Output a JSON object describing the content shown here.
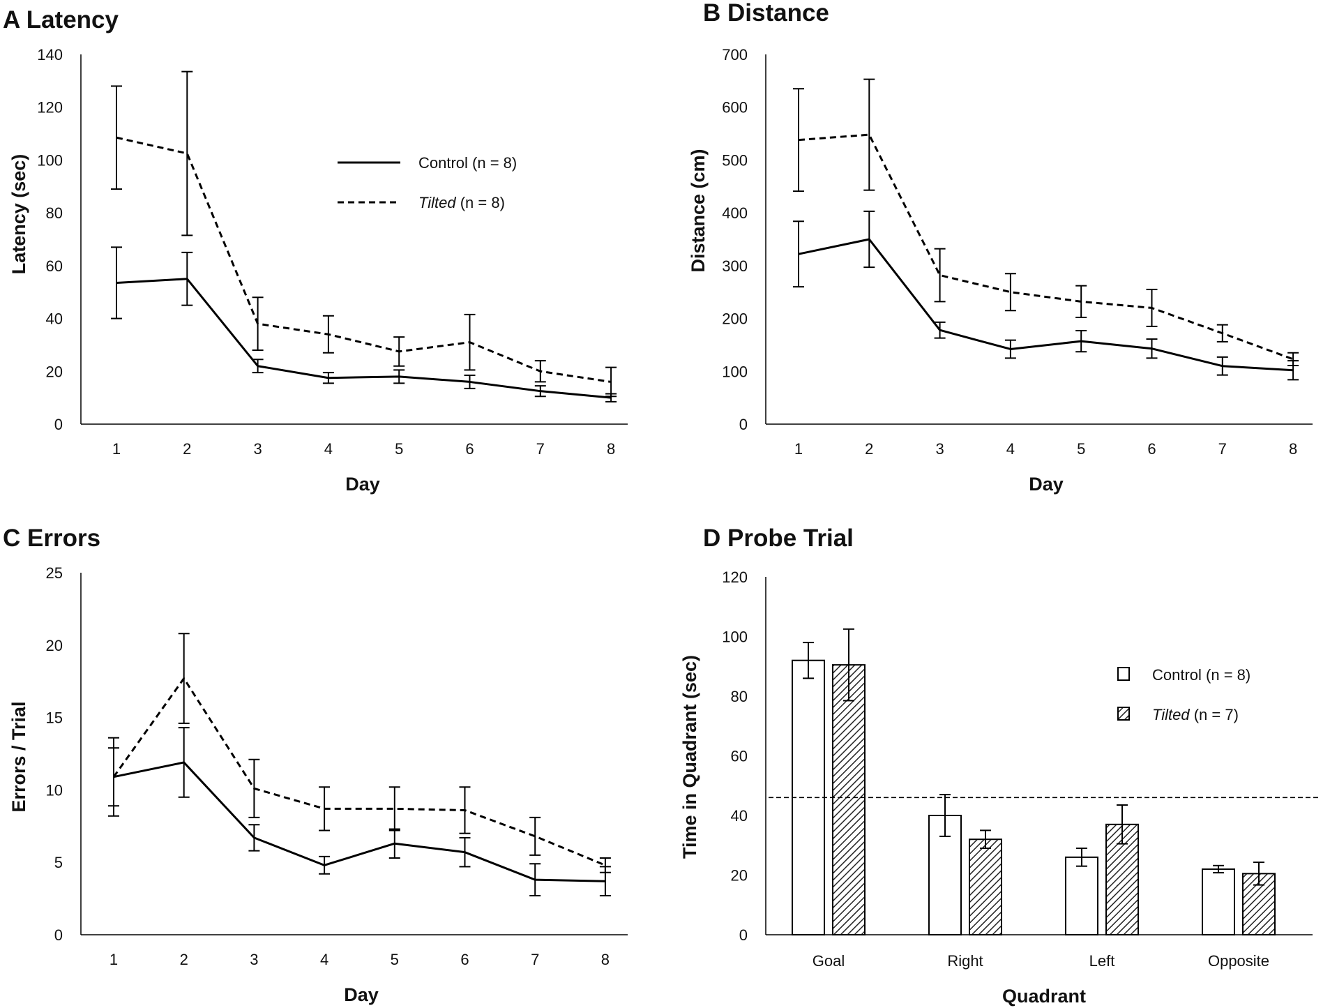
{
  "chart_data": [
    {
      "panel": "A",
      "type": "line",
      "title": "A Latency",
      "xlabel": "Day",
      "ylabel": "Latency (sec)",
      "ylim": [
        0,
        140
      ],
      "yticks": [
        0,
        20,
        40,
        60,
        80,
        100,
        120,
        140
      ],
      "categories": [
        "1",
        "2",
        "3",
        "4",
        "5",
        "6",
        "7",
        "8"
      ],
      "legend_position": "top-center",
      "series": [
        {
          "name": "Control (n = 8)",
          "italic": "",
          "suffix": "",
          "style": "solid",
          "values": [
            53.5,
            55,
            22,
            17.5,
            18,
            16,
            12.5,
            10
          ],
          "errors": [
            13.5,
            10,
            2.5,
            2,
            2.5,
            2.5,
            2,
            1.5
          ]
        },
        {
          "name": "Tilted (n = 8)",
          "italic": "Tilted",
          "suffix": " (n = 8)",
          "style": "dashed",
          "values": [
            108.5,
            102.5,
            38,
            34,
            27.5,
            31,
            20,
            16
          ],
          "errors": [
            19.5,
            31,
            10,
            7,
            5.5,
            10.5,
            4,
            5.5
          ]
        }
      ]
    },
    {
      "panel": "B",
      "type": "line",
      "title": "B Distance",
      "xlabel": "Day",
      "ylabel": "Distance (cm)",
      "ylim": [
        0,
        700
      ],
      "yticks": [
        0,
        100,
        200,
        300,
        400,
        500,
        600,
        700
      ],
      "categories": [
        "1",
        "2",
        "3",
        "4",
        "5",
        "6",
        "7",
        "8"
      ],
      "series": [
        {
          "name": "Control",
          "style": "solid",
          "values": [
            322,
            350,
            178,
            142,
            157,
            143,
            110,
            102
          ],
          "errors": [
            62,
            53,
            15,
            17,
            20,
            18,
            17,
            18
          ]
        },
        {
          "name": "Tilted",
          "style": "dashed",
          "values": [
            538,
            548,
            282,
            250,
            232,
            220,
            172,
            123
          ],
          "errors": [
            97,
            105,
            50,
            35,
            30,
            35,
            16,
            12
          ]
        }
      ]
    },
    {
      "panel": "C",
      "type": "line",
      "title": "C Errors",
      "xlabel": "Day",
      "ylabel": "Errors / Trial",
      "ylim": [
        0,
        25
      ],
      "yticks": [
        0,
        5,
        10,
        15,
        20,
        25
      ],
      "categories": [
        "1",
        "2",
        "3",
        "4",
        "5",
        "6",
        "7",
        "8"
      ],
      "series": [
        {
          "name": "Control",
          "style": "solid",
          "values": [
            10.9,
            11.9,
            6.7,
            4.8,
            6.3,
            5.7,
            3.8,
            3.7
          ],
          "errors": [
            2.7,
            2.4,
            0.9,
            0.6,
            1,
            1,
            1.1,
            1
          ]
        },
        {
          "name": "Tilted",
          "style": "dashed",
          "values": [
            10.9,
            17.7,
            10.1,
            8.7,
            8.7,
            8.6,
            6.8,
            4.8
          ],
          "errors": [
            2,
            3.1,
            2,
            1.5,
            1.5,
            1.6,
            1.3,
            0.5
          ]
        }
      ]
    },
    {
      "panel": "D",
      "type": "bar",
      "title": "D Probe Trial",
      "xlabel": "Quadrant",
      "ylabel": "Time in Quadrant (sec)",
      "ylim": [
        0,
        120
      ],
      "yticks": [
        0,
        20,
        40,
        60,
        80,
        100,
        120
      ],
      "categories": [
        "Goal",
        "Right",
        "Left",
        "Opposite"
      ],
      "reference_line": 46,
      "legend_position": "right",
      "series": [
        {
          "name": "Control (n = 8)",
          "italic": "",
          "suffix": "",
          "fill": "white",
          "values": [
            92,
            40,
            26,
            22
          ],
          "errors": [
            6,
            7,
            3,
            1.2
          ]
        },
        {
          "name": "Tilted (n = 7)",
          "italic": "Tilted",
          "suffix": " (n = 7)",
          "fill": "hatched",
          "values": [
            90.5,
            32,
            37,
            20.5
          ],
          "errors": [
            12,
            3,
            6.5,
            3.8
          ]
        }
      ]
    }
  ]
}
